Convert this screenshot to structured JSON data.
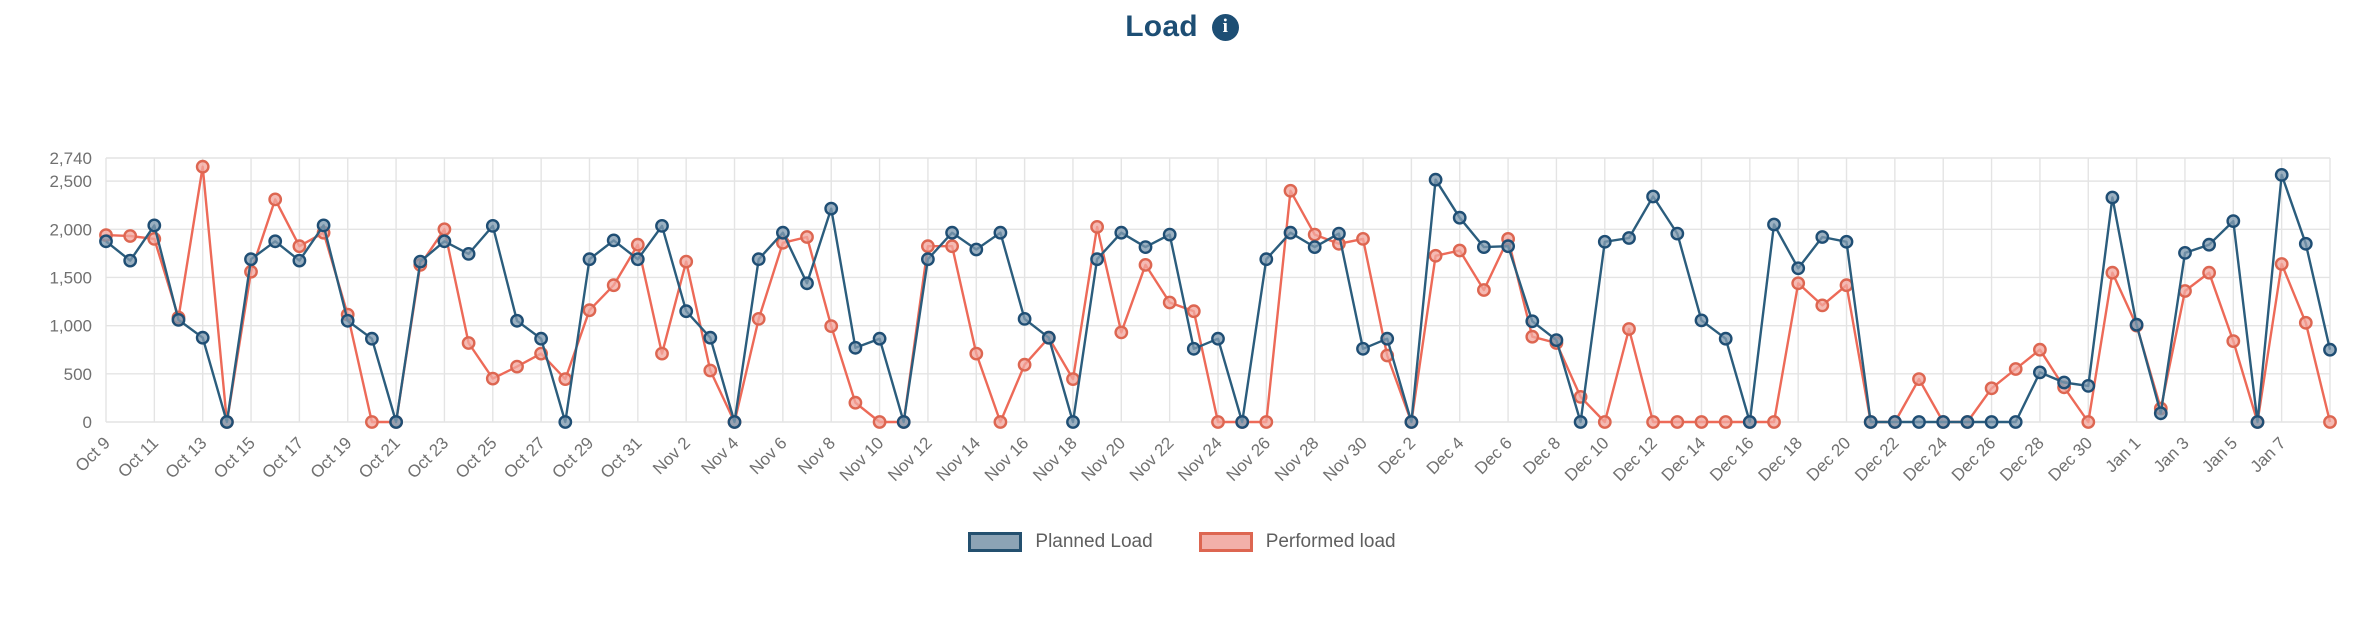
{
  "page": {
    "title": "Load",
    "info_icon_glyph": "i"
  },
  "colors": {
    "title": "#1d4e74",
    "grid": "#e4e4e4",
    "axis_text": "#707070",
    "planned_line": "#2b5d7d",
    "planned_marker_fill": "#7f9ab0",
    "planned_marker_stroke": "#1f4e74",
    "planned_swatch_fill": "#8ca3b5",
    "planned_swatch_border": "#24506f",
    "performed_line": "#ed6a58",
    "performed_marker_fill": "#f2a79e",
    "performed_marker_stroke": "#dd6651",
    "performed_swatch_fill": "#f2b0a9",
    "performed_swatch_border": "#dd6651"
  },
  "legend": {
    "items": [
      {
        "label": "Planned Load"
      },
      {
        "label": "Performed load"
      }
    ]
  },
  "y_axis_tick_labels": [
    "2,740",
    "2,500",
    "2,000",
    "1,500",
    "1,000",
    "500",
    "0"
  ],
  "chart_data": {
    "type": "line",
    "title": "Load",
    "xlabel": "",
    "ylabel": "",
    "ylim": [
      0,
      2740
    ],
    "yticks": [
      0,
      500,
      1000,
      1500,
      2000,
      2500,
      2740
    ],
    "ytick_labels": [
      "0",
      "500",
      "1,000",
      "1,500",
      "2,000",
      "2,500",
      "2,740"
    ],
    "grid": true,
    "legend_position": "bottom",
    "x_label_interval": 2,
    "x_label_rotation": -45,
    "categories": [
      "Oct 9",
      "Oct 10",
      "Oct 11",
      "Oct 12",
      "Oct 13",
      "Oct 14",
      "Oct 15",
      "Oct 16",
      "Oct 17",
      "Oct 18",
      "Oct 19",
      "Oct 20",
      "Oct 21",
      "Oct 22",
      "Oct 23",
      "Oct 24",
      "Oct 25",
      "Oct 26",
      "Oct 27",
      "Oct 28",
      "Oct 29",
      "Oct 30",
      "Oct 31",
      "Nov 1",
      "Nov 2",
      "Nov 3",
      "Nov 4",
      "Nov 5",
      "Nov 6",
      "Nov 7",
      "Nov 8",
      "Nov 9",
      "Nov 10",
      "Nov 11",
      "Nov 12",
      "Nov 13",
      "Nov 14",
      "Nov 15",
      "Nov 16",
      "Nov 17",
      "Nov 18",
      "Nov 19",
      "Nov 20",
      "Nov 21",
      "Nov 22",
      "Nov 23",
      "Nov 24",
      "Nov 25",
      "Nov 26",
      "Nov 27",
      "Nov 28",
      "Nov 29",
      "Nov 30",
      "Dec 1",
      "Dec 2",
      "Dec 3",
      "Dec 4",
      "Dec 5",
      "Dec 6",
      "Dec 7",
      "Dec 8",
      "Dec 9",
      "Dec 10",
      "Dec 11",
      "Dec 12",
      "Dec 13",
      "Dec 14",
      "Dec 15",
      "Dec 16",
      "Dec 17",
      "Dec 18",
      "Dec 19",
      "Dec 20",
      "Dec 21",
      "Dec 22",
      "Dec 23",
      "Dec 24",
      "Dec 25",
      "Dec 26",
      "Dec 27",
      "Dec 28",
      "Dec 29",
      "Dec 30",
      "Dec 31",
      "Jan 1",
      "Jan 2",
      "Jan 3",
      "Jan 4",
      "Jan 5",
      "Jan 6",
      "Jan 7",
      "Jan 8",
      "Jan 9"
    ],
    "series": [
      {
        "name": "Planned Load",
        "values": [
          1875,
          1675,
          2040,
          1060,
          875,
          0,
          1690,
          1875,
          1675,
          2040,
          1050,
          865,
          0,
          1665,
          1875,
          1745,
          2035,
          1050,
          865,
          0,
          1690,
          1885,
          1690,
          2035,
          1150,
          875,
          0,
          1690,
          1965,
          1440,
          2215,
          770,
          865,
          0,
          1690,
          1965,
          1790,
          1965,
          1070,
          875,
          0,
          1690,
          1965,
          1815,
          1945,
          760,
          865,
          0,
          1690,
          1965,
          1815,
          1955,
          760,
          865,
          0,
          2515,
          2120,
          1815,
          1825,
          1045,
          850,
          0,
          1870,
          1910,
          2340,
          1955,
          1055,
          865,
          0,
          2050,
          1595,
          1920,
          1870,
          0,
          0,
          0,
          0,
          0,
          0,
          0,
          515,
          410,
          375,
          2330,
          1010,
          90,
          1755,
          1840,
          2085,
          0,
          2565,
          1850,
          750
        ]
      },
      {
        "name": "Performed load",
        "values": [
          1940,
          1930,
          1900,
          1085,
          2650,
          0,
          1560,
          2310,
          1825,
          1965,
          1115,
          0,
          0,
          1630,
          2000,
          820,
          450,
          575,
          710,
          445,
          1160,
          1420,
          1840,
          710,
          1665,
          535,
          0,
          1070,
          1860,
          1920,
          995,
          200,
          0,
          0,
          1825,
          1825,
          710,
          0,
          595,
          875,
          445,
          2025,
          930,
          1630,
          1240,
          1150,
          0,
          0,
          0,
          2400,
          1945,
          1850,
          1900,
          690,
          0,
          1725,
          1780,
          1370,
          1900,
          885,
          820,
          260,
          0,
          965,
          0,
          0,
          0,
          0,
          0,
          0,
          1440,
          1210,
          1420,
          0,
          0,
          445,
          0,
          0,
          350,
          550,
          750,
          360,
          0,
          1550,
          1000,
          140,
          1360,
          1550,
          840,
          0,
          1640,
          1030,
          0
        ]
      }
    ]
  }
}
